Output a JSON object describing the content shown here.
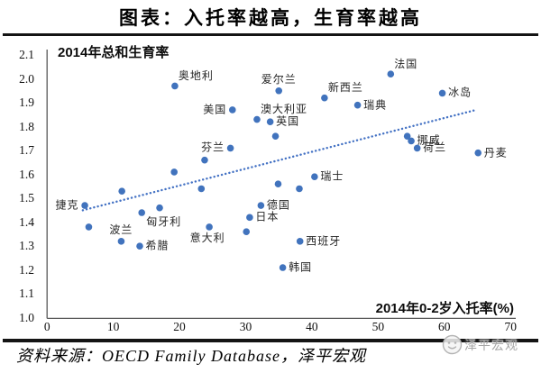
{
  "title": "图表：入托率越高，生育率越高",
  "source": "资料来源：OECD Family Database，泽平宏观",
  "watermark": "泽平宏观",
  "colors": {
    "point": "#4173bd",
    "trend": "#4472c4",
    "axis": "#595959",
    "text": "#000000",
    "watermark_gray": "#a6a6a6"
  },
  "chart_data": {
    "type": "scatter",
    "ylabel": "2014年总和生育率",
    "xlabel": "2014年0-2岁入托率(%)",
    "xlim": [
      0,
      70
    ],
    "ylim": [
      1.0,
      2.1
    ],
    "xticks": [
      "0",
      "10",
      "20",
      "30",
      "40",
      "50",
      "60",
      "70"
    ],
    "yticks": [
      "2.1",
      "2.0",
      "1.9",
      "1.8",
      "1.7",
      "1.6",
      "1.5",
      "1.4",
      "1.3",
      "1.2",
      "1.1",
      "1.0"
    ],
    "grid": false,
    "legend": false,
    "points": [
      {
        "name": "捷克",
        "x": 5.7,
        "y": 1.47,
        "label_pos": "left"
      },
      {
        "name": "",
        "x": 6.3,
        "y": 1.38
      },
      {
        "name": "波兰",
        "x": 11.2,
        "y": 1.32,
        "label_pos": "above"
      },
      {
        "name": "",
        "x": 11.3,
        "y": 1.53
      },
      {
        "name": "希腊",
        "x": 14.0,
        "y": 1.3,
        "label_pos": "right"
      },
      {
        "name": "匈牙利",
        "x": 14.3,
        "y": 1.44,
        "label_pos": "below-right"
      },
      {
        "name": "",
        "x": 17.0,
        "y": 1.46
      },
      {
        "name": "",
        "x": 19.2,
        "y": 1.61
      },
      {
        "name": "奥地利",
        "x": 19.3,
        "y": 1.97,
        "label_pos": "above-right"
      },
      {
        "name": "",
        "x": 23.3,
        "y": 1.54
      },
      {
        "name": "",
        "x": 23.8,
        "y": 1.66
      },
      {
        "name": "意大利",
        "x": 24.5,
        "y": 1.38,
        "label_pos": "below"
      },
      {
        "name": "芬兰",
        "x": 27.7,
        "y": 1.71,
        "label_pos": "left"
      },
      {
        "name": "美国",
        "x": 28.0,
        "y": 1.87,
        "label_pos": "left"
      },
      {
        "name": "",
        "x": 30.1,
        "y": 1.36
      },
      {
        "name": "日本",
        "x": 30.6,
        "y": 1.42,
        "label_pos": "right"
      },
      {
        "name": "澳大利亚",
        "x": 31.7,
        "y": 1.83,
        "label_pos": "above-right"
      },
      {
        "name": "德国",
        "x": 32.3,
        "y": 1.47,
        "label_pos": "right"
      },
      {
        "name": "英国",
        "x": 33.7,
        "y": 1.82,
        "label_pos": "right"
      },
      {
        "name": "",
        "x": 34.5,
        "y": 1.76
      },
      {
        "name": "",
        "x": 34.9,
        "y": 1.56
      },
      {
        "name": "爱尔兰",
        "x": 35.0,
        "y": 1.95,
        "label_pos": "above"
      },
      {
        "name": "韩国",
        "x": 35.6,
        "y": 1.21,
        "label_pos": "right"
      },
      {
        "name": "",
        "x": 38.1,
        "y": 1.54
      },
      {
        "name": "西班牙",
        "x": 38.2,
        "y": 1.32,
        "label_pos": "right"
      },
      {
        "name": "瑞士",
        "x": 40.4,
        "y": 1.59,
        "label_pos": "right"
      },
      {
        "name": "新西兰",
        "x": 41.9,
        "y": 1.92,
        "label_pos": "above-right"
      },
      {
        "name": "瑞典",
        "x": 46.9,
        "y": 1.89,
        "label_pos": "right"
      },
      {
        "name": "法国",
        "x": 51.9,
        "y": 2.02,
        "label_pos": "above-right"
      },
      {
        "name": "",
        "x": 54.4,
        "y": 1.76
      },
      {
        "name": "挪威",
        "x": 55.0,
        "y": 1.74,
        "label_pos": "right"
      },
      {
        "name": "荷兰",
        "x": 55.9,
        "y": 1.71,
        "label_pos": "right"
      },
      {
        "name": "冰岛",
        "x": 59.7,
        "y": 1.94,
        "label_pos": "right"
      },
      {
        "name": "丹麦",
        "x": 65.1,
        "y": 1.69,
        "label_pos": "right"
      }
    ],
    "trendline": {
      "x1": 5.4,
      "y1": 1.45,
      "x2": 64.8,
      "y2": 1.87,
      "style": "dotted"
    }
  }
}
